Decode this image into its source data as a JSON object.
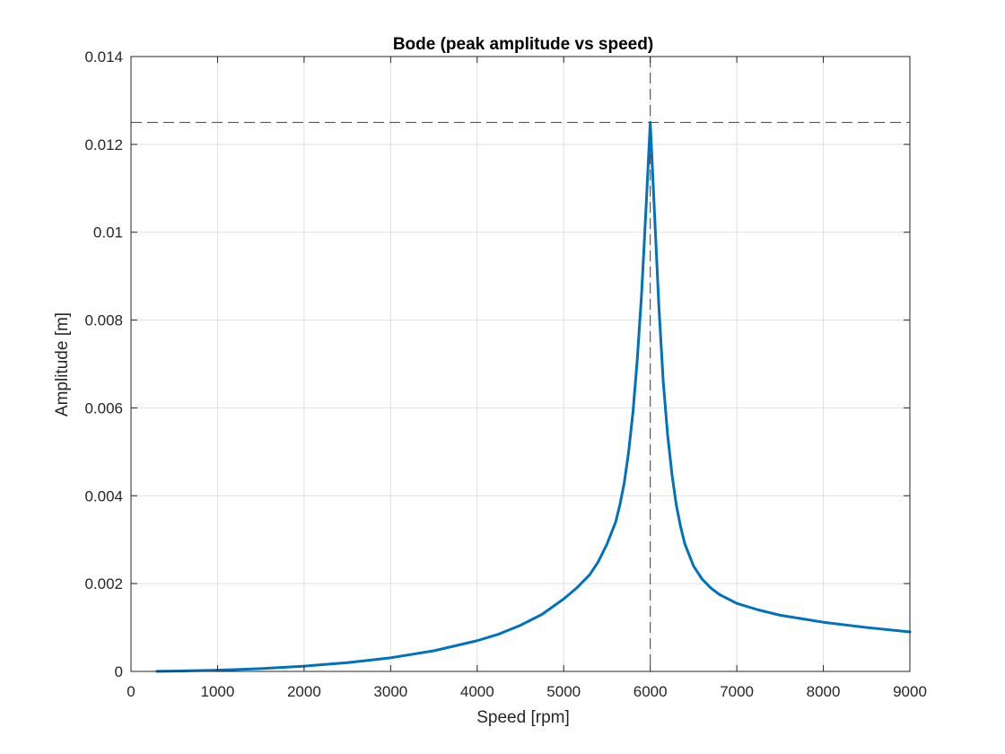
{
  "chart_data": {
    "type": "line",
    "title": "Bode (peak amplitude vs speed)",
    "xlabel": "Speed [rpm]",
    "ylabel": "Amplitude [m]",
    "xlim": [
      0,
      9000
    ],
    "ylim": [
      0,
      0.014
    ],
    "xticks": [
      "0",
      "1000",
      "2000",
      "3000",
      "4000",
      "5000",
      "6000",
      "7000",
      "8000",
      "9000"
    ],
    "yticks": [
      "0",
      "0.002",
      "0.004",
      "0.006",
      "0.008",
      "0.01",
      "0.012",
      "0.014"
    ],
    "grid": true,
    "reference_lines": {
      "x": 6000,
      "y": 0.0125,
      "style": "dashed",
      "color": "#404040"
    },
    "series": [
      {
        "color": "#0072BD",
        "resonance_rpm": 6000,
        "x": [
          300,
          500,
          1000,
          1500,
          2000,
          2500,
          3000,
          3500,
          4000,
          4250,
          4500,
          4750,
          5000,
          5150,
          5300,
          5400,
          5500,
          5600,
          5650,
          5700,
          5750,
          5800,
          5850,
          5900,
          5950,
          6000,
          6050,
          6100,
          6150,
          6200,
          6250,
          6300,
          6350,
          6400,
          6500,
          6600,
          6700,
          6800,
          7000,
          7250,
          7500,
          8000,
          8500,
          9000
        ],
        "y": [
          2.5e-06,
          6.9e-06,
          2.8e-05,
          6.5e-05,
          0.00012,
          0.0002,
          0.00031,
          0.00047,
          0.0007,
          0.00085,
          0.00105,
          0.0013,
          0.00165,
          0.0019,
          0.0022,
          0.0025,
          0.0029,
          0.0034,
          0.0038,
          0.0043,
          0.005,
          0.0059,
          0.0071,
          0.0086,
          0.0105,
          0.0125,
          0.0104,
          0.0083,
          0.0066,
          0.0054,
          0.0045,
          0.0038,
          0.0033,
          0.0029,
          0.0024,
          0.0021,
          0.0019,
          0.00175,
          0.00155,
          0.0014,
          0.00128,
          0.00112,
          0.001,
          0.0009
        ]
      }
    ]
  }
}
